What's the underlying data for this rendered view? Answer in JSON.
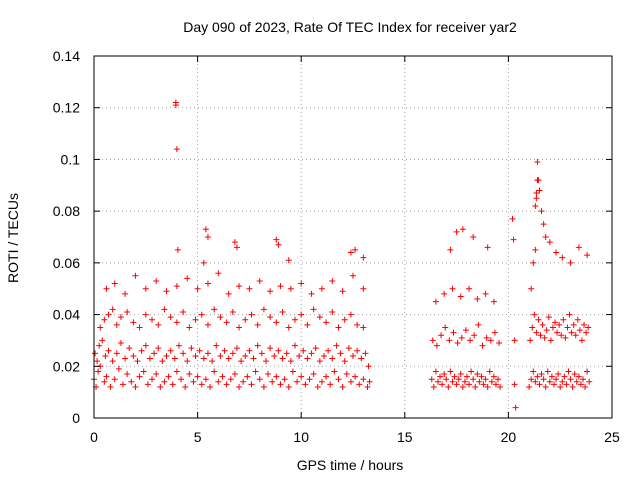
{
  "chart_data": {
    "type": "scatter",
    "title": "Day 090 of 2023, Rate Of TEC Index for receiver yar2",
    "xlabel": "GPS time / hours",
    "ylabel": "ROTI / TECUs",
    "xlim": [
      0,
      25
    ],
    "ylim": [
      0,
      0.14
    ],
    "x_ticks": [
      0,
      5,
      10,
      15,
      20,
      25
    ],
    "x_tick_labels": [
      "0",
      "5",
      "10",
      "15",
      "20",
      "25"
    ],
    "y_ticks": [
      0,
      0.02,
      0.04,
      0.06,
      0.08,
      0.1,
      0.12,
      0.14
    ],
    "y_tick_labels": [
      "0",
      "0.02",
      "0.04",
      "0.06",
      "0.08",
      "0.1",
      "0.12",
      "0.14"
    ],
    "grid": true,
    "marker": "+",
    "marker_color": "#ff0000",
    "series": [
      {
        "x": [
          0.0,
          0.1,
          0.2,
          0.3,
          0.5,
          0.6,
          0.8,
          1.0,
          1.2,
          1.4,
          1.6,
          1.8,
          2.0,
          2.2,
          2.4,
          2.6,
          2.8,
          3.0,
          3.2,
          3.4,
          3.6,
          3.8,
          4.0,
          4.2,
          4.4,
          4.6,
          4.8,
          5.0,
          5.2,
          5.4,
          5.6,
          5.8,
          6.0,
          6.2,
          6.4,
          6.6,
          6.8,
          7.0,
          7.2,
          7.4,
          7.6,
          7.8,
          8.0,
          8.2,
          8.4,
          8.6,
          8.8,
          9.0,
          9.2,
          9.4,
          9.6,
          9.8,
          10.0,
          10.2,
          10.4,
          10.6,
          10.8,
          11.0,
          11.2,
          11.4,
          11.6,
          11.8,
          12.0,
          12.2,
          12.4,
          12.6,
          12.8,
          13.0,
          13.2,
          13.3,
          0.05,
          0.15,
          0.25,
          0.4,
          0.55,
          0.7,
          0.9,
          1.1,
          1.3,
          1.5,
          1.7,
          1.9,
          2.1,
          2.3,
          2.5,
          2.7,
          2.9,
          3.1,
          3.3,
          3.5,
          3.7,
          3.9,
          4.1,
          4.3,
          4.5,
          4.7,
          4.9,
          5.1,
          5.3,
          5.5,
          5.7,
          5.9,
          6.1,
          6.3,
          6.5,
          6.7,
          6.9,
          7.1,
          7.3,
          7.5,
          7.7,
          7.9,
          8.1,
          8.3,
          8.5,
          8.7,
          8.9,
          9.1,
          9.3,
          9.5,
          9.7,
          9.9,
          10.1,
          10.3,
          10.5,
          10.7,
          10.9,
          11.1,
          11.3,
          11.5,
          11.7,
          11.9,
          12.1,
          12.3,
          12.5,
          12.7,
          12.9,
          13.1,
          13.25,
          0.3,
          0.5,
          0.7,
          0.9,
          1.1,
          1.3,
          1.6,
          1.9,
          2.2,
          2.5,
          2.8,
          3.1,
          3.4,
          3.7,
          4.0,
          4.3,
          4.6,
          4.9,
          5.2,
          5.5,
          5.8,
          6.1,
          6.4,
          6.7,
          7.0,
          7.3,
          7.6,
          7.9,
          8.2,
          8.5,
          8.8,
          9.1,
          9.4,
          9.7,
          10.0,
          10.3,
          10.6,
          10.9,
          11.2,
          11.5,
          11.8,
          12.1,
          12.4,
          12.7,
          13.0,
          0.6,
          1.0,
          1.5,
          2.0,
          2.5,
          3.0,
          3.5,
          4.0,
          4.5,
          5.0,
          5.5,
          6.0,
          6.5,
          7.0,
          7.5,
          8.0,
          8.5,
          9.0,
          9.5,
          10.0,
          10.5,
          11.0,
          11.5,
          12.0,
          12.5,
          13.0,
          3.95,
          3.95,
          4.0,
          4.05,
          5.3,
          5.4,
          5.5,
          6.8,
          6.9,
          8.8,
          8.9,
          9.4,
          12.4,
          12.6,
          13.0,
          16.3,
          16.4,
          16.5,
          16.6,
          16.7,
          16.8,
          16.9,
          17.0,
          17.1,
          17.2,
          17.3,
          17.4,
          17.5,
          17.6,
          17.7,
          17.8,
          17.9,
          18.0,
          18.1,
          18.2,
          18.3,
          18.4,
          18.5,
          18.6,
          18.7,
          18.8,
          18.9,
          19.0,
          19.1,
          19.2,
          19.3,
          19.4,
          19.5,
          19.6,
          16.35,
          16.55,
          16.75,
          16.95,
          17.15,
          17.35,
          17.55,
          17.75,
          17.95,
          18.15,
          18.35,
          18.55,
          18.75,
          18.95,
          19.15,
          19.35,
          19.55,
          16.5,
          16.9,
          17.3,
          17.7,
          18.1,
          18.5,
          18.9,
          19.3,
          17.2,
          17.5,
          17.8,
          18.3,
          19.0,
          20.2,
          20.25,
          20.3,
          20.3,
          20.35,
          21.0,
          21.1,
          21.2,
          21.3,
          21.4,
          21.5,
          21.6,
          21.7,
          21.8,
          21.9,
          22.0,
          22.1,
          22.2,
          22.3,
          22.4,
          22.5,
          22.6,
          22.7,
          22.8,
          22.9,
          23.0,
          23.1,
          23.2,
          23.3,
          23.4,
          23.5,
          23.6,
          23.7,
          23.8,
          23.9,
          21.05,
          21.15,
          21.25,
          21.35,
          21.45,
          21.55,
          21.65,
          21.75,
          21.85,
          21.95,
          22.05,
          22.15,
          22.25,
          22.35,
          22.45,
          22.55,
          22.65,
          22.75,
          22.85,
          22.95,
          23.05,
          23.15,
          23.25,
          23.35,
          23.45,
          23.55,
          23.65,
          23.75,
          23.85,
          21.3,
          21.35,
          21.4,
          21.45,
          21.5,
          21.6,
          21.7,
          21.8,
          22.0,
          22.3,
          22.6,
          23.0,
          23.4,
          23.8,
          21.1,
          21.2,
          21.3,
          21.35,
          21.4
        ],
        "y": [
          0.015,
          0.012,
          0.018,
          0.02,
          0.014,
          0.016,
          0.012,
          0.015,
          0.019,
          0.013,
          0.017,
          0.014,
          0.012,
          0.016,
          0.018,
          0.013,
          0.015,
          0.017,
          0.012,
          0.014,
          0.016,
          0.013,
          0.018,
          0.015,
          0.012,
          0.017,
          0.014,
          0.016,
          0.013,
          0.015,
          0.012,
          0.018,
          0.014,
          0.016,
          0.013,
          0.015,
          0.017,
          0.012,
          0.014,
          0.016,
          0.013,
          0.018,
          0.015,
          0.012,
          0.017,
          0.014,
          0.016,
          0.013,
          0.015,
          0.012,
          0.018,
          0.014,
          0.016,
          0.013,
          0.015,
          0.017,
          0.012,
          0.014,
          0.016,
          0.013,
          0.018,
          0.015,
          0.012,
          0.017,
          0.014,
          0.016,
          0.013,
          0.015,
          0.012,
          0.014,
          0.025,
          0.022,
          0.028,
          0.03,
          0.024,
          0.026,
          0.022,
          0.025,
          0.029,
          0.023,
          0.027,
          0.024,
          0.022,
          0.026,
          0.028,
          0.023,
          0.025,
          0.027,
          0.022,
          0.024,
          0.026,
          0.023,
          0.028,
          0.025,
          0.022,
          0.027,
          0.024,
          0.026,
          0.023,
          0.025,
          0.022,
          0.028,
          0.024,
          0.026,
          0.023,
          0.025,
          0.027,
          0.022,
          0.024,
          0.026,
          0.023,
          0.028,
          0.025,
          0.022,
          0.027,
          0.024,
          0.026,
          0.023,
          0.025,
          0.022,
          0.028,
          0.024,
          0.026,
          0.023,
          0.025,
          0.027,
          0.022,
          0.024,
          0.026,
          0.023,
          0.028,
          0.025,
          0.022,
          0.027,
          0.024,
          0.026,
          0.023,
          0.025,
          0.02,
          0.035,
          0.038,
          0.04,
          0.042,
          0.036,
          0.039,
          0.041,
          0.037,
          0.035,
          0.04,
          0.038,
          0.036,
          0.042,
          0.039,
          0.037,
          0.041,
          0.035,
          0.038,
          0.04,
          0.036,
          0.042,
          0.039,
          0.037,
          0.041,
          0.035,
          0.038,
          0.04,
          0.036,
          0.042,
          0.039,
          0.037,
          0.041,
          0.035,
          0.038,
          0.04,
          0.036,
          0.042,
          0.039,
          0.037,
          0.041,
          0.035,
          0.038,
          0.04,
          0.036,
          0.035,
          0.05,
          0.052,
          0.048,
          0.055,
          0.05,
          0.053,
          0.049,
          0.051,
          0.054,
          0.05,
          0.052,
          0.056,
          0.048,
          0.051,
          0.05,
          0.053,
          0.049,
          0.051,
          0.05,
          0.052,
          0.048,
          0.05,
          0.053,
          0.049,
          0.055,
          0.05,
          0.121,
          0.122,
          0.104,
          0.065,
          0.06,
          0.073,
          0.07,
          0.068,
          0.066,
          0.069,
          0.067,
          0.061,
          0.064,
          0.065,
          0.062,
          0.015,
          0.012,
          0.018,
          0.014,
          0.016,
          0.013,
          0.017,
          0.015,
          0.012,
          0.018,
          0.014,
          0.016,
          0.013,
          0.015,
          0.017,
          0.012,
          0.014,
          0.016,
          0.013,
          0.018,
          0.015,
          0.012,
          0.017,
          0.014,
          0.016,
          0.013,
          0.015,
          0.012,
          0.018,
          0.014,
          0.016,
          0.013,
          0.015,
          0.012,
          0.03,
          0.028,
          0.032,
          0.035,
          0.03,
          0.033,
          0.029,
          0.031,
          0.034,
          0.03,
          0.032,
          0.036,
          0.028,
          0.031,
          0.03,
          0.033,
          0.029,
          0.045,
          0.048,
          0.05,
          0.047,
          0.05,
          0.046,
          0.048,
          0.045,
          0.065,
          0.072,
          0.073,
          0.07,
          0.066,
          0.077,
          0.069,
          0.013,
          0.03,
          0.004,
          0.012,
          0.015,
          0.018,
          0.014,
          0.016,
          0.013,
          0.017,
          0.015,
          0.012,
          0.018,
          0.014,
          0.016,
          0.013,
          0.015,
          0.017,
          0.012,
          0.014,
          0.016,
          0.013,
          0.018,
          0.015,
          0.012,
          0.017,
          0.014,
          0.016,
          0.013,
          0.015,
          0.012,
          0.018,
          0.014,
          0.03,
          0.035,
          0.04,
          0.033,
          0.038,
          0.032,
          0.036,
          0.031,
          0.034,
          0.039,
          0.03,
          0.035,
          0.037,
          0.033,
          0.036,
          0.032,
          0.038,
          0.031,
          0.035,
          0.04,
          0.033,
          0.036,
          0.032,
          0.038,
          0.034,
          0.03,
          0.036,
          0.033,
          0.035,
          0.065,
          0.085,
          0.099,
          0.092,
          0.088,
          0.08,
          0.075,
          0.07,
          0.068,
          0.064,
          0.062,
          0.06,
          0.066,
          0.063,
          0.05,
          0.06,
          0.082,
          0.087,
          0.092
        ]
      }
    ]
  }
}
